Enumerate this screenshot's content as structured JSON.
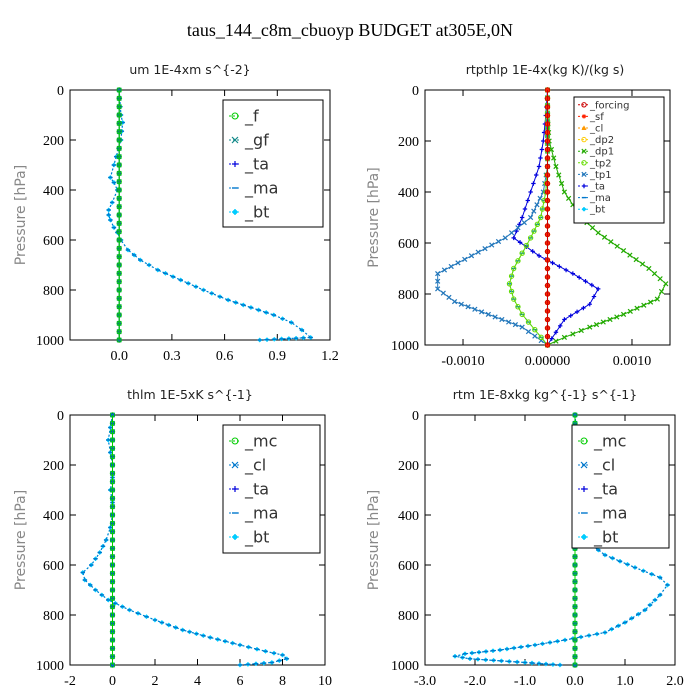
{
  "title": "taus_144_c8m_cbuoyp  BUDGET at305E,0N",
  "chart_data": [
    {
      "type": "line",
      "title": "um  1E-4xm s^{-2}",
      "ylabel": "Pressure [hPa]",
      "xlim": [
        -0.28,
        1.2
      ],
      "ylim": [
        1000,
        0
      ],
      "xticks": [
        0.0,
        0.3,
        0.6,
        0.9,
        1.2
      ],
      "xtick_labels": [
        "0.0",
        "0.3",
        "0.6",
        "0.9",
        "1.2"
      ],
      "yticks": [
        0,
        200,
        400,
        600,
        800,
        1000
      ],
      "ytick_labels": [
        "0",
        "200",
        "400",
        "600",
        "800",
        "1000"
      ],
      "legend_position": "top-right",
      "series": [
        {
          "name": "_f",
          "color": "#00cc00",
          "marker": "circle",
          "x": [
            0.0,
            0.0,
            0.0,
            0.0,
            0.0,
            0.0,
            0.0,
            0.0,
            0.0,
            0.0,
            0.0
          ],
          "y": [
            0,
            100,
            200,
            300,
            400,
            500,
            600,
            700,
            800,
            900,
            1000
          ]
        },
        {
          "name": "_gf",
          "color": "#118888",
          "marker": "x",
          "x": [
            0.0,
            0.0,
            0.0,
            0.0,
            0.0,
            0.0,
            0.0,
            0.0,
            0.0,
            0.0,
            0.0
          ],
          "y": [
            0,
            100,
            200,
            300,
            400,
            500,
            600,
            700,
            800,
            900,
            1000
          ]
        },
        {
          "name": "_ta",
          "color": "#0000dd",
          "marker": "plus",
          "x": [
            0.0,
            0.0,
            0.0,
            0.0,
            0.0,
            0.0,
            0.0,
            0.0,
            0.0,
            0.0,
            0.0
          ],
          "y": [
            0,
            100,
            200,
            300,
            400,
            500,
            600,
            700,
            800,
            900,
            1000
          ]
        },
        {
          "name": "_ma",
          "color": "#0077cc",
          "marker": "dash",
          "x": [
            0.0,
            0.01,
            0.02,
            0.01,
            -0.03,
            -0.05,
            -0.03,
            -0.01,
            -0.04,
            -0.06,
            -0.06,
            -0.05,
            -0.03,
            -0.01,
            0.01,
            0.05,
            0.12,
            0.22,
            0.35,
            0.48,
            0.62,
            0.75,
            0.88,
            0.98,
            1.04,
            1.09,
            0.8
          ],
          "y": [
            0,
            100,
            130,
            200,
            300,
            350,
            370,
            400,
            450,
            480,
            500,
            520,
            550,
            570,
            600,
            640,
            680,
            720,
            760,
            800,
            840,
            870,
            900,
            930,
            960,
            990,
            1000
          ]
        },
        {
          "name": "_bt",
          "color": "#00ccff",
          "marker": "diamond",
          "x": [
            0.0,
            0.01,
            0.02,
            0.01,
            -0.03,
            -0.05,
            -0.03,
            -0.01,
            -0.04,
            -0.06,
            -0.06,
            -0.05,
            -0.03,
            -0.01,
            0.01,
            0.05,
            0.12,
            0.22,
            0.35,
            0.48,
            0.62,
            0.75,
            0.88,
            0.98,
            1.04,
            1.09,
            0.8
          ],
          "y": [
            0,
            100,
            130,
            200,
            300,
            350,
            370,
            400,
            450,
            480,
            500,
            520,
            550,
            570,
            600,
            640,
            680,
            720,
            760,
            800,
            840,
            870,
            900,
            930,
            960,
            990,
            1000
          ]
        }
      ]
    },
    {
      "type": "line",
      "title": "rtpthlp  1E-4x(kg K)/(kg s)",
      "ylabel": "Pressure [hPa]",
      "xlim": [
        -0.00145,
        0.00145
      ],
      "ylim": [
        1000,
        0
      ],
      "xticks": [
        -0.001,
        0.0,
        0.001
      ],
      "xtick_labels": [
        "-0.0010",
        "0.00000",
        "0.0010"
      ],
      "yticks": [
        0,
        200,
        400,
        600,
        800,
        1000
      ],
      "ytick_labels": [
        "0",
        "200",
        "400",
        "600",
        "800",
        "1000"
      ],
      "legend_position": "top-right",
      "series": [
        {
          "name": "_forcing",
          "color": "#cc0000",
          "marker": "circle",
          "x": [
            0,
            0,
            0,
            0,
            0,
            0,
            0,
            0,
            0,
            0,
            0
          ],
          "y": [
            0,
            100,
            200,
            300,
            400,
            500,
            600,
            700,
            800,
            900,
            1000
          ]
        },
        {
          "name": "_sf",
          "color": "#ff2200",
          "marker": "star",
          "x": [
            0,
            0,
            0,
            0,
            0,
            0,
            0,
            0,
            0,
            0,
            0
          ],
          "y": [
            0,
            100,
            200,
            300,
            400,
            500,
            600,
            700,
            800,
            900,
            1000
          ]
        },
        {
          "name": "_cl",
          "color": "#ff9900",
          "marker": "triangle",
          "x": [
            0,
            0,
            0,
            0,
            0,
            0,
            0,
            0,
            0,
            0,
            0
          ],
          "y": [
            0,
            100,
            200,
            300,
            400,
            500,
            600,
            700,
            800,
            900,
            1000
          ]
        },
        {
          "name": "_dp2",
          "color": "#ffcc00",
          "marker": "circle",
          "x": [
            0,
            0,
            0,
            0,
            0,
            0,
            0,
            0,
            0,
            0,
            0
          ],
          "y": [
            0,
            100,
            200,
            300,
            400,
            500,
            600,
            700,
            800,
            900,
            1000
          ]
        },
        {
          "name": "_dp1",
          "color": "#22aa00",
          "marker": "x",
          "x": [
            0,
            0,
            2e-05,
            0.0001,
            0.0002,
            0.0004,
            0.0006,
            0.0009,
            0.0012,
            0.0014,
            0.0013,
            0.0009,
            0.0005,
            0.0002,
            0
          ],
          "y": [
            0,
            100,
            200,
            300,
            400,
            500,
            560,
            630,
            700,
            760,
            820,
            880,
            930,
            970,
            1000
          ]
        },
        {
          "name": "_tp2",
          "color": "#66dd00",
          "marker": "circle",
          "x": [
            0,
            0,
            -2e-05,
            -8e-05,
            -0.0002,
            -0.0003,
            -0.0004,
            -0.00045,
            -0.0004,
            -0.0003,
            -0.00015,
            0
          ],
          "y": [
            0,
            300,
            400,
            500,
            580,
            640,
            700,
            760,
            820,
            880,
            940,
            1000
          ]
        },
        {
          "name": "_tp1",
          "color": "#2277bb",
          "marker": "x",
          "x": [
            0,
            0,
            -5e-05,
            -0.0002,
            -0.0005,
            -0.0009,
            -0.0013,
            -0.0013,
            -0.0011,
            -0.0007,
            -0.0003,
            0
          ],
          "y": [
            0,
            300,
            400,
            500,
            580,
            650,
            720,
            780,
            830,
            880,
            930,
            1000
          ]
        },
        {
          "name": "_ta",
          "color": "#0000dd",
          "marker": "plus",
          "x": [
            0,
            -2e-05,
            -5e-05,
            -0.0001,
            -0.0002,
            -0.0003,
            -0.0004,
            -0.0001,
            0.0003,
            0.0006,
            0.0005,
            0.0002,
            0
          ],
          "y": [
            0,
            100,
            200,
            300,
            400,
            500,
            580,
            650,
            720,
            780,
            840,
            900,
            1000
          ]
        },
        {
          "name": "_ma",
          "color": "#0077cc",
          "marker": "dash",
          "x": [
            0,
            0,
            -2e-05,
            -8e-05,
            -0.0002,
            -0.0003,
            -0.0004,
            -0.00045,
            -0.0004,
            -0.0003,
            -0.00015,
            0
          ],
          "y": [
            0,
            300,
            400,
            500,
            580,
            640,
            700,
            760,
            820,
            880,
            940,
            1000
          ]
        },
        {
          "name": "_bt",
          "color": "#00ccff",
          "marker": "diamond",
          "x": [
            0,
            0,
            0,
            0,
            0,
            0,
            0,
            0,
            0,
            0,
            0
          ],
          "y": [
            0,
            100,
            200,
            300,
            400,
            500,
            600,
            700,
            800,
            900,
            1000
          ]
        }
      ]
    },
    {
      "type": "line",
      "title": "thlm  1E-5xK s^{-1}",
      "ylabel": "Pressure [hPa]",
      "xlim": [
        -2,
        10
      ],
      "ylim": [
        1000,
        0
      ],
      "xticks": [
        -2,
        0,
        2,
        4,
        6,
        8,
        10
      ],
      "xtick_labels": [
        "-2",
        "0",
        "2",
        "4",
        "6",
        "8",
        "10"
      ],
      "yticks": [
        0,
        200,
        400,
        600,
        800,
        1000
      ],
      "ytick_labels": [
        "0",
        "200",
        "400",
        "600",
        "800",
        "1000"
      ],
      "legend_position": "top-right",
      "series": [
        {
          "name": "_mc",
          "color": "#00cc00",
          "marker": "circle",
          "x": [
            0,
            0,
            0,
            0,
            0,
            0,
            0,
            0,
            0,
            0,
            0
          ],
          "y": [
            0,
            100,
            200,
            300,
            400,
            500,
            600,
            700,
            800,
            900,
            1000
          ]
        },
        {
          "name": "_cl",
          "color": "#0077cc",
          "marker": "x",
          "x": [
            0,
            0,
            0,
            0,
            0,
            0,
            0,
            0,
            0,
            0,
            0
          ],
          "y": [
            0,
            100,
            200,
            300,
            400,
            500,
            600,
            700,
            800,
            900,
            1000
          ]
        },
        {
          "name": "_ta",
          "color": "#0000dd",
          "marker": "plus",
          "x": [
            0,
            0,
            0,
            0,
            0,
            0,
            0,
            0,
            0,
            0,
            0
          ],
          "y": [
            0,
            100,
            200,
            300,
            400,
            500,
            600,
            700,
            800,
            900,
            1000
          ]
        },
        {
          "name": "_ma",
          "color": "#0077cc",
          "marker": "dash",
          "x": [
            0,
            -0.1,
            -0.2,
            -0.1,
            0,
            0,
            -0.1,
            0,
            0,
            -0.1,
            -0.3,
            -0.6,
            -1.0,
            -1.4,
            -1.3,
            -0.8,
            -0.2,
            0.8,
            2.0,
            3.3,
            4.6,
            6.0,
            7.2,
            8.0,
            8.2,
            7.5,
            6.0
          ],
          "y": [
            0,
            50,
            100,
            150,
            200,
            250,
            300,
            350,
            400,
            450,
            500,
            550,
            600,
            630,
            660,
            700,
            740,
            780,
            820,
            860,
            890,
            920,
            945,
            960,
            975,
            990,
            1000
          ]
        },
        {
          "name": "_bt",
          "color": "#00ccff",
          "marker": "diamond",
          "x": [
            0,
            -0.1,
            -0.2,
            -0.1,
            0,
            0,
            -0.1,
            0,
            0,
            -0.1,
            -0.3,
            -0.6,
            -1.0,
            -1.4,
            -1.3,
            -0.8,
            -0.2,
            0.8,
            2.0,
            3.3,
            4.6,
            6.0,
            7.2,
            8.0,
            8.2,
            7.5,
            6.0
          ],
          "y": [
            0,
            50,
            100,
            150,
            200,
            250,
            300,
            350,
            400,
            450,
            500,
            550,
            600,
            630,
            660,
            700,
            740,
            780,
            820,
            860,
            890,
            920,
            945,
            960,
            975,
            990,
            1000
          ]
        }
      ]
    },
    {
      "type": "line",
      "title": "rtm  1E-8xkg kg^{-1} s^{-1}",
      "ylabel": "Pressure [hPa]",
      "xlim": [
        -3.0,
        2.0
      ],
      "ylim": [
        1000,
        0
      ],
      "xticks": [
        -3,
        -2,
        -1,
        0,
        1,
        2
      ],
      "xtick_labels": [
        "-3.0",
        "-2.0",
        "-1.0",
        "0.0",
        "1.0",
        "2.0"
      ],
      "yticks": [
        0,
        200,
        400,
        600,
        800,
        1000
      ],
      "ytick_labels": [
        "0",
        "200",
        "400",
        "600",
        "800",
        "1000"
      ],
      "legend_position": "top-right",
      "series": [
        {
          "name": "_mc",
          "color": "#00cc00",
          "marker": "circle",
          "x": [
            0,
            0,
            0,
            0,
            0,
            0,
            0,
            0,
            0,
            0,
            0
          ],
          "y": [
            0,
            100,
            200,
            300,
            400,
            500,
            600,
            700,
            800,
            900,
            1000
          ]
        },
        {
          "name": "_cl",
          "color": "#0077cc",
          "marker": "x",
          "x": [
            0,
            0,
            0,
            0,
            0,
            0,
            0,
            0,
            0,
            0,
            0
          ],
          "y": [
            0,
            100,
            200,
            300,
            400,
            500,
            600,
            700,
            800,
            900,
            1000
          ]
        },
        {
          "name": "_ta",
          "color": "#0000dd",
          "marker": "plus",
          "x": [
            0,
            0,
            0,
            0,
            0,
            0,
            0,
            0,
            0,
            0,
            0
          ],
          "y": [
            0,
            100,
            200,
            300,
            400,
            500,
            600,
            700,
            800,
            900,
            1000
          ]
        },
        {
          "name": "_ma",
          "color": "#0077cc",
          "marker": "dash",
          "x": [
            0,
            0.02,
            0.05,
            0.02,
            0,
            0.03,
            0.02,
            0,
            0.05,
            0.2,
            0.6,
            1.2,
            1.7,
            1.85,
            1.7,
            1.4,
            1.0,
            0.6,
            -0.2,
            -0.8,
            -1.5,
            -2.2,
            -2.4,
            -2.1,
            -1.0,
            -0.3
          ],
          "y": [
            0,
            50,
            100,
            150,
            200,
            250,
            300,
            350,
            400,
            500,
            560,
            610,
            650,
            680,
            720,
            780,
            830,
            870,
            900,
            920,
            940,
            955,
            965,
            975,
            990,
            1000
          ]
        },
        {
          "name": "_bt",
          "color": "#00ccff",
          "marker": "diamond",
          "x": [
            0,
            0.02,
            0.05,
            0.02,
            0,
            0.03,
            0.02,
            0,
            0.05,
            0.2,
            0.6,
            1.2,
            1.7,
            1.85,
            1.7,
            1.4,
            1.0,
            0.6,
            -0.2,
            -0.8,
            -1.5,
            -2.2,
            -2.4,
            -2.1,
            -1.0,
            -0.3
          ],
          "y": [
            0,
            50,
            100,
            150,
            200,
            250,
            300,
            350,
            400,
            500,
            560,
            610,
            650,
            680,
            720,
            780,
            830,
            870,
            900,
            920,
            940,
            955,
            965,
            975,
            990,
            1000
          ]
        }
      ]
    }
  ]
}
